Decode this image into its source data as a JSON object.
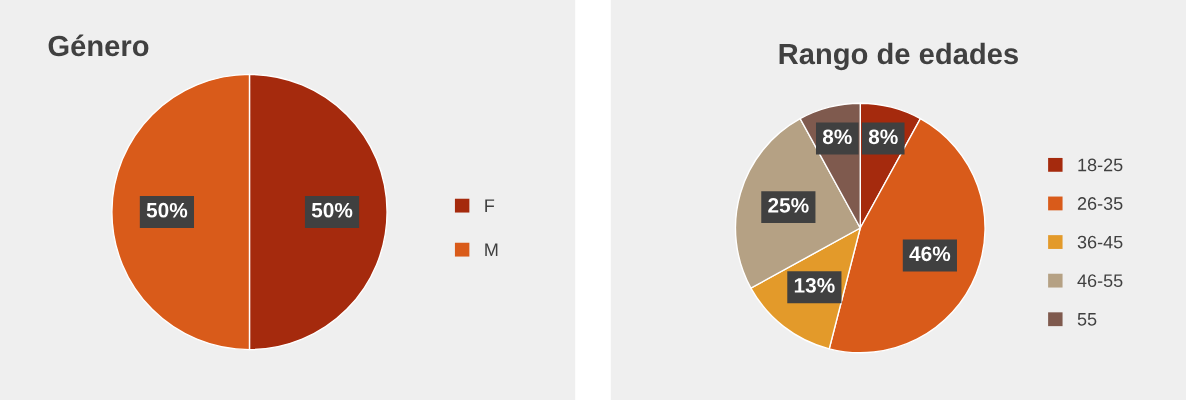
{
  "chart_data": [
    {
      "type": "pie",
      "title": "Género",
      "categories": [
        "F",
        "M"
      ],
      "values": [
        50,
        50
      ],
      "colors": [
        "#a52a0d",
        "#d95b1a"
      ],
      "value_labels": [
        "50%",
        "50%"
      ],
      "legend": "right"
    },
    {
      "type": "pie",
      "title": "Rango de edades",
      "categories": [
        "18-25",
        "26-35",
        "36-45",
        "46-55",
        "55"
      ],
      "values": [
        8,
        46,
        13,
        25,
        8
      ],
      "colors": [
        "#a52a0d",
        "#d95b1a",
        "#e39a2a",
        "#b5a184",
        "#7f5a4e"
      ],
      "value_labels": [
        "8%",
        "46%",
        "13%",
        "25%",
        "8%"
      ],
      "legend": "right"
    }
  ]
}
